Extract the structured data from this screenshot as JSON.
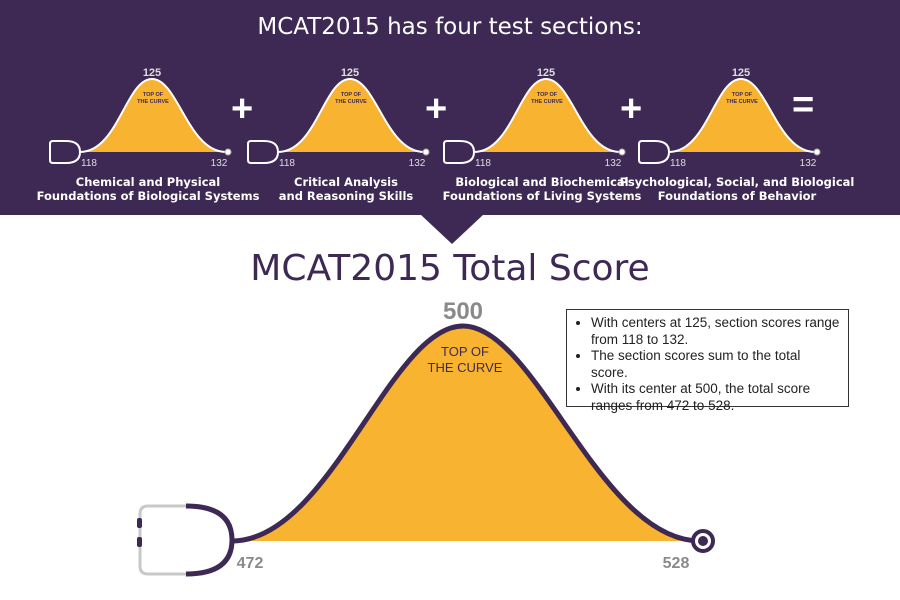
{
  "banner": {
    "headline": "MCAT2015 has four test sections:",
    "sections": [
      {
        "center": "125",
        "top_label": "TOP OF THE CURVE",
        "top_line1": "TOP OF",
        "top_line2": "THE CURVE",
        "min": "118",
        "max": "132",
        "name_line1": "Chemical and Physical",
        "name_line2": "Foundations of Biological Systems"
      },
      {
        "center": "125",
        "top_label": "TOP OF THE CURVE",
        "top_line1": "TOP OF",
        "top_line2": "THE CURVE",
        "min": "118",
        "max": "132",
        "name_line1": "Critical Analysis",
        "name_line2": "and Reasoning Skills"
      },
      {
        "center": "125",
        "top_label": "TOP OF THE CURVE",
        "top_line1": "TOP OF",
        "top_line2": "THE CURVE",
        "min": "118",
        "max": "132",
        "name_line1": "Biological and Biochemical",
        "name_line2": "Foundations of Living Systems"
      },
      {
        "center": "125",
        "top_label": "TOP OF THE CURVE",
        "top_line1": "TOP OF",
        "top_line2": "THE CURVE",
        "min": "118",
        "max": "132",
        "name_line1": "Psychological, Social, and Biological",
        "name_line2": "Foundations of Behavior"
      }
    ],
    "operators": [
      "+",
      "+",
      "+",
      "="
    ]
  },
  "total": {
    "title": "MCAT2015 Total Score",
    "center": "500",
    "top_line1": "TOP OF",
    "top_line2": "THE CURVE",
    "min": "472",
    "max": "528"
  },
  "notes": [
    "With centers at 125, section scores range from 118 to 132.",
    "The section scores sum to the total score.",
    "With its center at 500, the total score ranges from 472 to 528."
  ],
  "colors": {
    "purple": "#3e2955",
    "gold": "#f8b330",
    "gray": "#8a8a8a"
  }
}
